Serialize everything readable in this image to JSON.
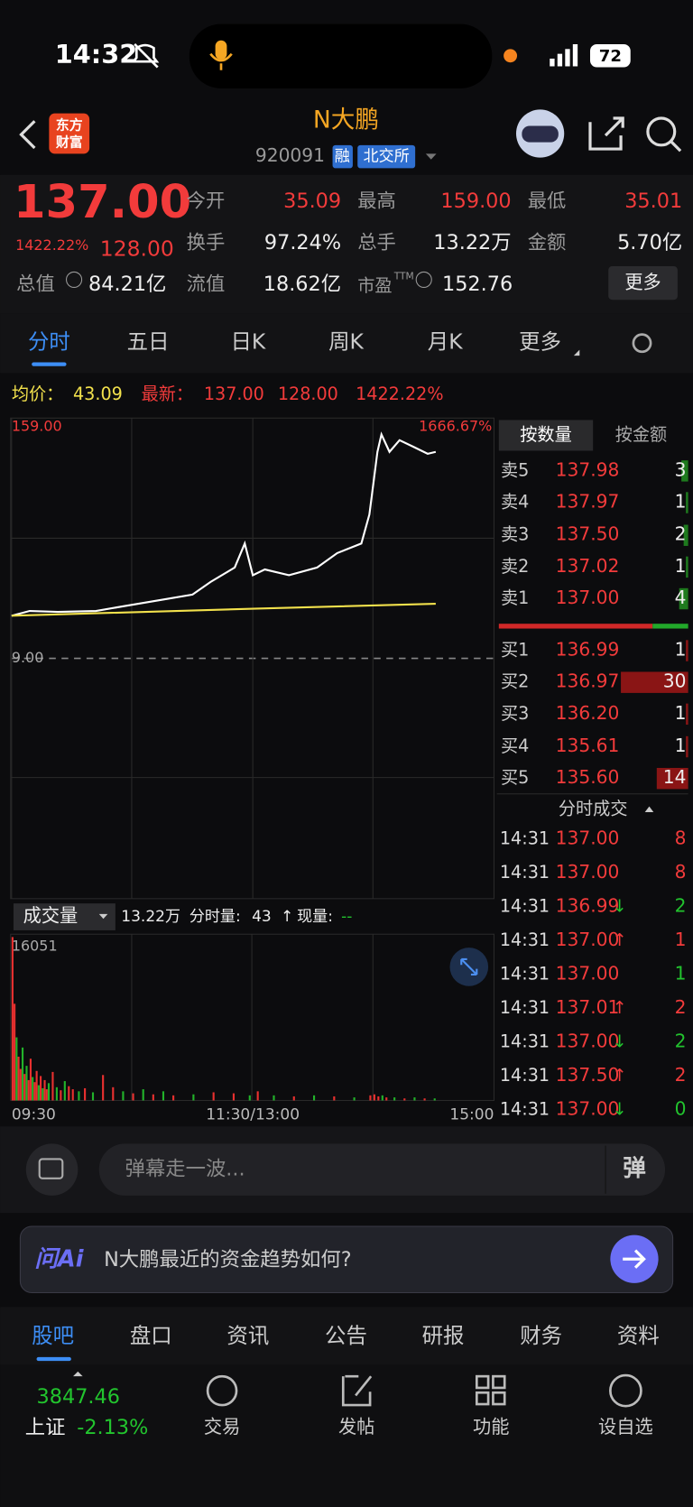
{
  "status": {
    "time": "14:32",
    "battery": "72"
  },
  "header": {
    "badge": [
      "东方",
      "财富"
    ],
    "name": "N大鹏",
    "code": "920091",
    "tags": [
      "融",
      "北交所"
    ]
  },
  "quote": {
    "price": "137.00",
    "pct": "1422.22%",
    "change": "128.00",
    "fields": [
      {
        "label": "今开",
        "value": "35.09"
      },
      {
        "label": "最高",
        "value": "159.00"
      },
      {
        "label": "最低",
        "value": "35.01"
      },
      {
        "label": "换手",
        "value": "97.24%"
      },
      {
        "label": "总手",
        "value": "13.22万"
      },
      {
        "label": "金额",
        "value": "5.70亿"
      }
    ],
    "total_label": "总值",
    "total_value": "84.21亿",
    "float_label": "流值",
    "float_value": "18.62亿",
    "pe_label": "市盈",
    "pe_sup": "TTM",
    "pe_value": "152.76",
    "more": "更多"
  },
  "tabs": [
    "分时",
    "五日",
    "日K",
    "周K",
    "月K",
    "更多"
  ],
  "info": {
    "avg_label": "均价：",
    "avg": "43.09",
    "latest_label": "最新：",
    "latest": "137.00",
    "change": "128.00",
    "pct": "1422.22%"
  },
  "chart_data": [
    {
      "type": "line",
      "xlim": [
        0,
        240
      ],
      "ylim": [
        -141,
        159
      ],
      "xticks": [
        {
          "value": 0,
          "label": "09:30"
        },
        {
          "value": 120,
          "label": "11:30/13:00"
        },
        {
          "value": 240,
          "label": "15:00"
        }
      ],
      "yticks": [
        {
          "value": 159,
          "label": "159.00"
        },
        {
          "value": 9,
          "label": "9.00"
        }
      ],
      "right_label": "1666.67%",
      "series": [
        {
          "color": "#ffffff",
          "x": [
            0,
            9,
            23,
            42,
            56,
            76,
            90,
            99,
            111,
            116,
            120,
            126,
            138,
            152,
            162,
            174,
            178,
            182,
            184,
            188,
            193,
            200,
            207,
            211
          ],
          "values": [
            35.6,
            38.6,
            38,
            38.6,
            41.6,
            45.8,
            48.8,
            56.7,
            65.7,
            80.7,
            60.9,
            64.5,
            60.9,
            65.7,
            74.7,
            80.7,
            98.8,
            137.9,
            148.8,
            137.9,
            145.2,
            141,
            136.7,
            137.9
          ]
        },
        {
          "color": "#f2e14c",
          "x": [
            0,
            120,
            211
          ],
          "values": [
            35.6,
            40,
            43.09
          ]
        }
      ]
    },
    {
      "type": "bar",
      "label": "成交量",
      "total": "13.22万",
      "minute_label": "分时量:",
      "minute_value": "43",
      "minute_arrow": "↑",
      "now_label": "现量:",
      "now_value": "--",
      "ylim": [
        0,
        16051
      ],
      "yticks": [
        16051
      ],
      "xlim": [
        0,
        240
      ],
      "x": [
        0,
        1,
        2,
        3,
        4,
        5,
        6,
        7,
        8,
        9,
        10,
        11,
        12,
        13,
        14,
        15,
        16,
        17,
        18,
        20,
        22,
        24,
        26,
        28,
        30,
        33,
        36,
        40,
        45,
        50,
        55,
        60,
        65,
        70,
        75,
        80,
        90,
        100,
        110,
        118,
        122,
        130,
        140,
        150,
        160,
        170,
        178,
        180,
        182,
        184,
        186,
        190,
        195,
        200,
        205,
        210
      ],
      "values": [
        16051,
        9500,
        6200,
        4300,
        3100,
        5200,
        2600,
        3400,
        2000,
        4100,
        2300,
        1800,
        2900,
        1500,
        2400,
        1200,
        2000,
        1100,
        1700,
        2800,
        1300,
        1000,
        1900,
        1400,
        1100,
        900,
        1200,
        800,
        2500,
        1300,
        900,
        700,
        1100,
        600,
        900,
        500,
        600,
        800,
        700,
        500,
        900,
        500,
        400,
        500,
        400,
        300,
        500,
        600,
        400,
        500,
        300,
        300,
        200,
        300,
        200,
        200
      ],
      "colors": [
        "#e8302f",
        "#e8302f",
        "#22b32a",
        "#e8302f",
        "#e8302f",
        "#22b32a",
        "#e8302f",
        "#22b32a",
        "#e8302f",
        "#e8302f",
        "#22b32a",
        "#e8302f",
        "#e8302f",
        "#22b32a",
        "#e8302f",
        "#22b32a",
        "#e8302f",
        "#e8302f",
        "#22b32a",
        "#e8302f",
        "#22b32a",
        "#e8302f",
        "#22b32a",
        "#e8302f",
        "#e8302f",
        "#22b32a",
        "#e8302f",
        "#22b32a",
        "#e8302f",
        "#e8302f",
        "#22b32a",
        "#e8302f",
        "#22b32a",
        "#e8302f",
        "#22b32a",
        "#e8302f",
        "#22b32a",
        "#e8302f",
        "#e8302f",
        "#22b32a",
        "#e8302f",
        "#22b32a",
        "#e8302f",
        "#22b32a",
        "#e8302f",
        "#22b32a",
        "#e8302f",
        "#e8302f",
        "#e8302f",
        "#22b32a",
        "#e8302f",
        "#22b32a",
        "#e8302f",
        "#22b32a",
        "#e8302f",
        "#22b32a"
      ]
    }
  ],
  "orderbook": {
    "toggle": [
      "按数量",
      "按金额"
    ],
    "asks": [
      {
        "label": "卖5",
        "price": "137.98",
        "qty": "3"
      },
      {
        "label": "卖4",
        "price": "137.97",
        "qty": "1"
      },
      {
        "label": "卖3",
        "price": "137.50",
        "qty": "2"
      },
      {
        "label": "卖2",
        "price": "137.02",
        "qty": "1"
      },
      {
        "label": "卖1",
        "price": "137.00",
        "qty": "4"
      }
    ],
    "bids": [
      {
        "label": "买1",
        "price": "136.99",
        "qty": "1"
      },
      {
        "label": "买2",
        "price": "136.97",
        "qty": "30"
      },
      {
        "label": "买3",
        "price": "136.20",
        "qty": "1"
      },
      {
        "label": "买4",
        "price": "135.61",
        "qty": "1"
      },
      {
        "label": "买5",
        "price": "135.60",
        "qty": "14"
      }
    ]
  },
  "trades": {
    "title": "分时成交",
    "rows": [
      {
        "time": "14:31",
        "price": "137.00",
        "arrow": "",
        "qty": "8",
        "color": "#f23b3b"
      },
      {
        "time": "14:31",
        "price": "137.00",
        "arrow": "",
        "qty": "8",
        "color": "#f23b3b"
      },
      {
        "time": "14:31",
        "price": "136.99",
        "arrow": "↓",
        "qty": "2",
        "color": "#22c42e"
      },
      {
        "time": "14:31",
        "price": "137.00",
        "arrow": "↑",
        "qty": "1",
        "color": "#f23b3b"
      },
      {
        "time": "14:31",
        "price": "137.00",
        "arrow": "",
        "qty": "1",
        "color": "#22c42e"
      },
      {
        "time": "14:31",
        "price": "137.01",
        "arrow": "↑",
        "qty": "2",
        "color": "#f23b3b"
      },
      {
        "time": "14:31",
        "price": "137.00",
        "arrow": "↓",
        "qty": "2",
        "color": "#22c42e"
      },
      {
        "time": "14:31",
        "price": "137.50",
        "arrow": "↑",
        "qty": "2",
        "color": "#f23b3b"
      },
      {
        "time": "14:31",
        "price": "137.00",
        "arrow": "↓",
        "qty": "0",
        "color": "#22c42e"
      }
    ]
  },
  "comment": {
    "placeholder": "弹幕走一波...",
    "button": "弹"
  },
  "ai": {
    "logo": "问Ai",
    "question": "N大鹏最近的资金趋势如何?"
  },
  "tabs2": [
    "股吧",
    "盘口",
    "资讯",
    "公告",
    "研报",
    "财务",
    "资料"
  ],
  "bottom": {
    "index_value": "3847.46",
    "index_name": "上证",
    "index_pct": "-2.13%",
    "items": [
      "交易",
      "发帖",
      "功能",
      "设自选"
    ]
  }
}
